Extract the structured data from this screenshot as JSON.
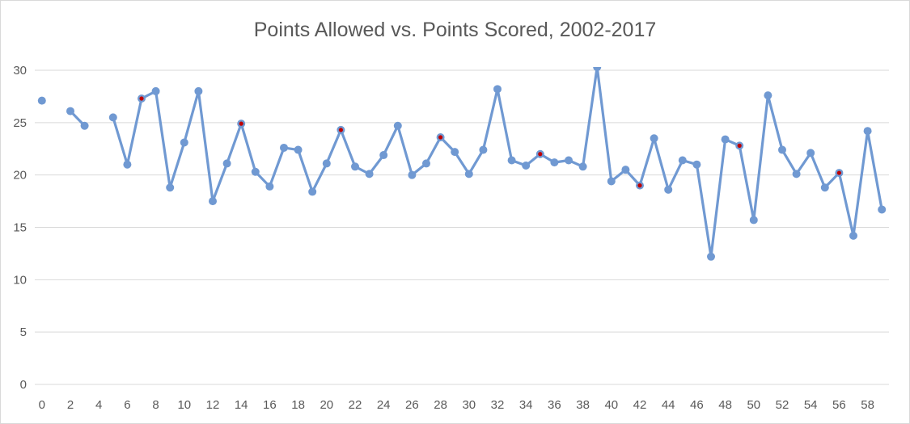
{
  "chart_data": {
    "type": "line",
    "title": "Points Allowed vs. Points Scored, 2002-2017",
    "xlabel": "",
    "ylabel": "",
    "xlim": [
      -0.5,
      59.5
    ],
    "ylim": [
      0,
      30
    ],
    "y_ticks": [
      0,
      5,
      10,
      15,
      20,
      25,
      30
    ],
    "x_ticks": [
      0,
      2,
      4,
      6,
      8,
      10,
      12,
      14,
      16,
      18,
      20,
      22,
      24,
      26,
      28,
      30,
      32,
      34,
      36,
      38,
      40,
      42,
      44,
      46,
      48,
      50,
      52,
      54,
      56,
      58
    ],
    "grid": "horizontal",
    "legend": "none",
    "line_color": "#7099d2",
    "highlight_color": "#c00000",
    "series": [
      {
        "x": [
          0,
          2,
          3,
          5,
          6,
          7,
          8,
          9,
          10,
          11,
          12,
          13,
          14,
          15,
          16,
          17,
          18,
          19,
          20,
          21,
          22,
          23,
          24,
          25,
          26,
          27,
          28,
          29,
          30,
          31,
          32,
          33,
          34,
          35,
          36,
          37,
          38,
          39,
          40,
          41,
          42,
          43,
          44,
          45,
          46,
          47,
          48,
          49,
          50,
          51,
          52,
          53,
          54,
          55,
          56,
          57,
          58,
          59
        ],
        "values": [
          27.1,
          26.1,
          24.7,
          25.5,
          21.0,
          27.3,
          28.0,
          18.8,
          23.1,
          28.0,
          17.5,
          21.1,
          24.9,
          20.3,
          18.9,
          22.6,
          22.4,
          18.4,
          21.1,
          24.3,
          20.8,
          20.1,
          21.9,
          24.7,
          20.0,
          21.1,
          23.6,
          22.2,
          20.1,
          22.4,
          28.2,
          21.4,
          20.9,
          22.0,
          21.2,
          21.4,
          20.8,
          30.3,
          19.4,
          20.5,
          19.0,
          23.5,
          18.6,
          21.4,
          21.0,
          12.2,
          23.4,
          22.8,
          15.7,
          27.6,
          22.4,
          20.1,
          22.1,
          18.8,
          20.2,
          14.2,
          24.2,
          16.7
        ],
        "highlighted_x": [
          7,
          14,
          21,
          28,
          35,
          42,
          49,
          56
        ]
      }
    ]
  }
}
